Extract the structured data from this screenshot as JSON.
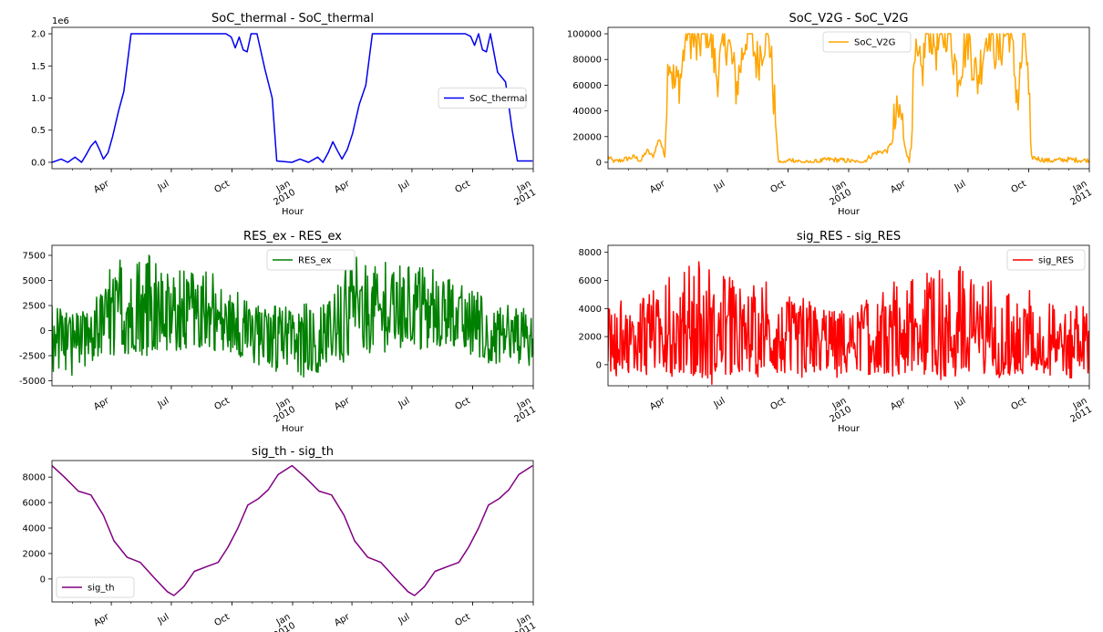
{
  "chart_data": [
    {
      "type": "line",
      "title": "SoC_thermal - SoC_thermal",
      "xlabel": "Hour",
      "ylabel": "",
      "offset_label": "1e6",
      "color": "#0000ee",
      "legend": {
        "loc": "center-right",
        "entries": [
          "SoC_thermal"
        ]
      },
      "xlim": [
        "2009-01-01",
        "2011-01-01"
      ],
      "ylim": [
        -0.1,
        2.1
      ],
      "yticks": [
        0.0,
        0.5,
        1.0,
        1.5,
        2.0
      ],
      "ytick_labels": [
        "0.0",
        "0.5",
        "1.0",
        "1.5",
        "2.0"
      ],
      "show_x_ticklabels": true,
      "series": [
        {
          "name": "SoC_thermal",
          "x": [
            "2009-01-01",
            "2009-01-15",
            "2009-01-25",
            "2009-02-05",
            "2009-02-15",
            "2009-02-22",
            "2009-03-01",
            "2009-03-08",
            "2009-03-14",
            "2009-03-20",
            "2009-03-27",
            "2009-04-03",
            "2009-04-12",
            "2009-04-20",
            "2009-05-01",
            "2009-05-15",
            "2009-06-01",
            "2009-07-01",
            "2009-08-01",
            "2009-09-01",
            "2009-09-22",
            "2009-09-30",
            "2009-10-06",
            "2009-10-12",
            "2009-10-18",
            "2009-10-24",
            "2009-10-30",
            "2009-11-08",
            "2009-11-20",
            "2009-12-01",
            "2009-12-08",
            "2009-12-31",
            "2010-01-12",
            "2010-01-25",
            "2010-02-08",
            "2010-02-16",
            "2010-02-24",
            "2010-03-03",
            "2010-03-10",
            "2010-03-17",
            "2010-03-25",
            "2010-04-02",
            "2010-04-12",
            "2010-04-22",
            "2010-05-02",
            "2010-06-01",
            "2010-07-01",
            "2010-08-01",
            "2010-09-01",
            "2010-09-20",
            "2010-09-28",
            "2010-10-04",
            "2010-10-10",
            "2010-10-16",
            "2010-10-22",
            "2010-10-28",
            "2010-11-08",
            "2010-11-20",
            "2010-11-30",
            "2010-12-08",
            "2010-12-31"
          ],
          "y": [
            0.0,
            0.05,
            0.0,
            0.08,
            0.0,
            0.12,
            0.25,
            0.33,
            0.2,
            0.05,
            0.15,
            0.4,
            0.8,
            1.1,
            2.0,
            2.0,
            2.0,
            2.0,
            2.0,
            2.0,
            2.0,
            1.95,
            1.78,
            1.95,
            1.75,
            1.72,
            2.0,
            2.0,
            1.45,
            1.0,
            0.02,
            0.0,
            0.05,
            0.0,
            0.08,
            0.0,
            0.15,
            0.32,
            0.18,
            0.05,
            0.2,
            0.45,
            0.9,
            1.2,
            2.0,
            2.0,
            2.0,
            2.0,
            2.0,
            2.0,
            1.96,
            1.82,
            2.0,
            1.75,
            1.72,
            2.0,
            1.4,
            1.25,
            0.5,
            0.02,
            0.02
          ]
        }
      ]
    },
    {
      "type": "line",
      "title": "SoC_V2G - SoC_V2G",
      "xlabel": "Hour",
      "ylabel": "",
      "color": "#ffa500",
      "legend": {
        "loc": "top-center",
        "entries": [
          "SoC_V2G"
        ]
      },
      "xlim": [
        "2009-01-01",
        "2011-01-01"
      ],
      "ylim": [
        -5000,
        105000
      ],
      "yticks": [
        0,
        20000,
        40000,
        60000,
        80000,
        100000
      ],
      "ytick_labels": [
        "0",
        "20000",
        "40000",
        "60000",
        "80000",
        "100000"
      ],
      "show_x_ticklabels": true,
      "series": [
        {
          "name": "SoC_V2G",
          "x": [
            "2009-01-01",
            "2009-01-10",
            "2009-02-10",
            "2009-02-20",
            "2009-03-01",
            "2009-03-10",
            "2009-03-20",
            "2009-03-28",
            "2009-04-03",
            "2009-04-12",
            "2009-04-22",
            "2009-05-01",
            "2009-05-15",
            "2009-06-01",
            "2009-06-15",
            "2009-07-01",
            "2009-07-15",
            "2009-08-01",
            "2009-08-15",
            "2009-09-01",
            "2009-09-10",
            "2009-09-17",
            "2009-09-24",
            "2009-10-05",
            "2009-11-01",
            "2009-12-01",
            "2010-01-01",
            "2010-01-20",
            "2010-02-10",
            "2010-03-01",
            "2010-03-20",
            "2010-04-03",
            "2010-04-12",
            "2010-04-22",
            "2010-05-01",
            "2010-05-15",
            "2010-06-01",
            "2010-06-15",
            "2010-07-01",
            "2010-07-15",
            "2010-08-01",
            "2010-08-15",
            "2010-09-01",
            "2010-09-15",
            "2010-09-25",
            "2010-10-05",
            "2010-10-20",
            "2010-11-01",
            "2010-12-01",
            "2010-12-31"
          ],
          "y": [
            5000,
            1000,
            5000,
            2000,
            10000,
            5000,
            20000,
            5000,
            80000,
            50000,
            60000,
            100000,
            80000,
            100000,
            60000,
            90000,
            50000,
            100000,
            70000,
            100000,
            40000,
            0,
            0,
            3000,
            0,
            3000,
            2000,
            0,
            8000,
            10000,
            30000,
            0,
            70000,
            60000,
            100000,
            80000,
            100000,
            60000,
            90000,
            55000,
            100000,
            75000,
            100000,
            40000,
            100000,
            5000,
            3000,
            2000,
            3000,
            2000
          ]
        }
      ]
    },
    {
      "type": "line",
      "title": "RES_ex - RES_ex",
      "xlabel": "Hour",
      "ylabel": "",
      "color": "#008000",
      "legend": {
        "loc": "top-center",
        "entries": [
          "RES_ex"
        ]
      },
      "xlim": [
        "2009-01-01",
        "2011-01-01"
      ],
      "ylim": [
        -5500,
        8500
      ],
      "yticks": [
        -5000,
        -2500,
        0,
        2500,
        5000,
        7500
      ],
      "ytick_labels": [
        "-5000",
        "-2500",
        "0",
        "2500",
        "5000",
        "7500"
      ],
      "show_x_ticklabels": true,
      "series": [
        {
          "name": "RES_ex",
          "x": [
            "2009-01-01",
            "2009-02-01",
            "2009-03-01",
            "2009-04-01",
            "2009-05-01",
            "2009-06-01",
            "2009-07-01",
            "2009-08-01",
            "2009-09-01",
            "2009-10-01",
            "2009-11-01",
            "2009-12-01",
            "2010-01-01",
            "2010-02-01",
            "2010-03-01",
            "2010-04-01",
            "2010-05-01",
            "2010-06-01",
            "2010-07-01",
            "2010-08-01",
            "2010-09-01",
            "2010-10-01",
            "2010-11-01",
            "2010-12-01",
            "2010-12-31"
          ],
          "y": [
            0,
            -500,
            -800,
            1500,
            2000,
            1500,
            1500,
            1500,
            1200,
            500,
            -500,
            -1000,
            -1000,
            -1200,
            0,
            1500,
            1800,
            1500,
            1800,
            1500,
            1200,
            0,
            -500,
            -800,
            -500
          ],
          "upper": [
            2800,
            1800,
            2500,
            6500,
            7700,
            7500,
            6000,
            6500,
            6000,
            4500,
            3000,
            2500,
            2500,
            2800,
            4000,
            7500,
            7700,
            6800,
            6500,
            6500,
            5000,
            4500,
            3000,
            2500,
            2000
          ],
          "lower": [
            -4500,
            -4700,
            -4000,
            -3500,
            -2500,
            -2500,
            -2000,
            -2000,
            -2000,
            -2500,
            -3500,
            -4500,
            -4500,
            -4800,
            -4000,
            -3500,
            -2500,
            -2200,
            -2000,
            -2000,
            -2000,
            -2500,
            -3500,
            -4200,
            -4300
          ]
        }
      ]
    },
    {
      "type": "line",
      "title": "sig_RES - sig_RES",
      "xlabel": "Hour",
      "ylabel": "",
      "color": "#ff0000",
      "legend": {
        "loc": "top-right",
        "entries": [
          "sig_RES"
        ]
      },
      "xlim": [
        "2009-01-01",
        "2011-01-01"
      ],
      "ylim": [
        -1500,
        8500
      ],
      "yticks": [
        0,
        2000,
        4000,
        6000,
        8000
      ],
      "ytick_labels": [
        "0",
        "2000",
        "4000",
        "6000",
        "8000"
      ],
      "show_x_ticklabels": true,
      "series": [
        {
          "name": "sig_RES",
          "x": [
            "2009-01-01",
            "2009-02-01",
            "2009-03-01",
            "2009-04-01",
            "2009-05-01",
            "2009-06-01",
            "2009-07-01",
            "2009-08-01",
            "2009-09-01",
            "2009-10-01",
            "2009-11-01",
            "2009-12-01",
            "2010-01-01",
            "2010-02-01",
            "2010-03-01",
            "2010-04-01",
            "2010-05-01",
            "2010-06-01",
            "2010-07-01",
            "2010-08-01",
            "2010-09-01",
            "2010-10-01",
            "2010-11-01",
            "2010-12-01",
            "2010-12-31"
          ],
          "y": [
            1800,
            1800,
            1800,
            2000,
            2200,
            2000,
            1800,
            1800,
            1800,
            1800,
            1800,
            1700,
            1700,
            1800,
            1800,
            2100,
            2200,
            2000,
            1800,
            1800,
            1800,
            1800,
            1700,
            1600,
            1600
          ],
          "upper": [
            4800,
            4500,
            5000,
            6200,
            7000,
            8300,
            6500,
            6000,
            6000,
            6000,
            4800,
            4500,
            4000,
            5000,
            5500,
            7200,
            6500,
            8300,
            6500,
            6000,
            6000,
            5500,
            4500,
            4500,
            4500
          ],
          "lower": [
            -800,
            -900,
            -900,
            -800,
            -800,
            -700,
            -700,
            -700,
            -800,
            -900,
            -1000,
            -1100,
            -1100,
            -1000,
            -900,
            -800,
            -700,
            -700,
            -700,
            -800,
            -800,
            -900,
            -1000,
            -1000,
            -1000
          ]
        }
      ]
    },
    {
      "type": "line",
      "title": "sig_th - sig_th",
      "xlabel": "",
      "ylabel": "",
      "color": "#800080",
      "legend": {
        "loc": "bottom-left",
        "entries": [
          "sig_th"
        ]
      },
      "xlim": [
        "2009-01-01",
        "2011-01-01"
      ],
      "ylim": [
        -1800,
        9300
      ],
      "yticks": [
        0,
        2000,
        4000,
        6000,
        8000
      ],
      "ytick_labels": [
        "0",
        "2000",
        "4000",
        "6000",
        "8000"
      ],
      "show_x_ticklabels": true,
      "series": [
        {
          "name": "sig_th",
          "x": [
            "2009-01-01",
            "2009-01-20",
            "2009-02-10",
            "2009-03-01",
            "2009-03-20",
            "2009-04-05",
            "2009-04-25",
            "2009-05-15",
            "2009-06-05",
            "2009-06-25",
            "2009-07-05",
            "2009-07-20",
            "2009-08-05",
            "2009-08-25",
            "2009-09-10",
            "2009-09-25",
            "2009-10-10",
            "2009-10-25",
            "2009-11-10",
            "2009-11-25",
            "2009-12-10",
            "2009-12-31",
            "2010-01-20",
            "2010-02-10",
            "2010-03-01",
            "2010-03-20",
            "2010-04-05",
            "2010-04-25",
            "2010-05-15",
            "2010-06-05",
            "2010-06-25",
            "2010-07-05",
            "2010-07-20",
            "2010-08-05",
            "2010-08-25",
            "2010-09-10",
            "2010-09-25",
            "2010-10-10",
            "2010-10-25",
            "2010-11-10",
            "2010-11-25",
            "2010-12-10",
            "2010-12-31"
          ],
          "y": [
            8900,
            8000,
            6900,
            6600,
            5000,
            3000,
            1700,
            1300,
            100,
            -1000,
            -1300,
            -600,
            600,
            1000,
            1300,
            2500,
            4000,
            5800,
            6300,
            7000,
            8200,
            8900,
            8000,
            6900,
            6600,
            5000,
            3000,
            1700,
            1300,
            100,
            -1000,
            -1300,
            -600,
            600,
            1000,
            1300,
            2500,
            4000,
            5800,
            6300,
            7000,
            8200,
            8900
          ]
        }
      ]
    }
  ],
  "x_axis": {
    "ticks": [
      "2009-04-01",
      "2009-07-01",
      "2009-10-01",
      "2010-01-01",
      "2010-04-01",
      "2010-07-01",
      "2010-10-01",
      "2011-01-01"
    ],
    "tick_labels": [
      "Apr",
      "Jul",
      "Oct",
      "Jan\n2010",
      "Apr",
      "Jul",
      "Oct",
      "Jan\n2011"
    ]
  }
}
